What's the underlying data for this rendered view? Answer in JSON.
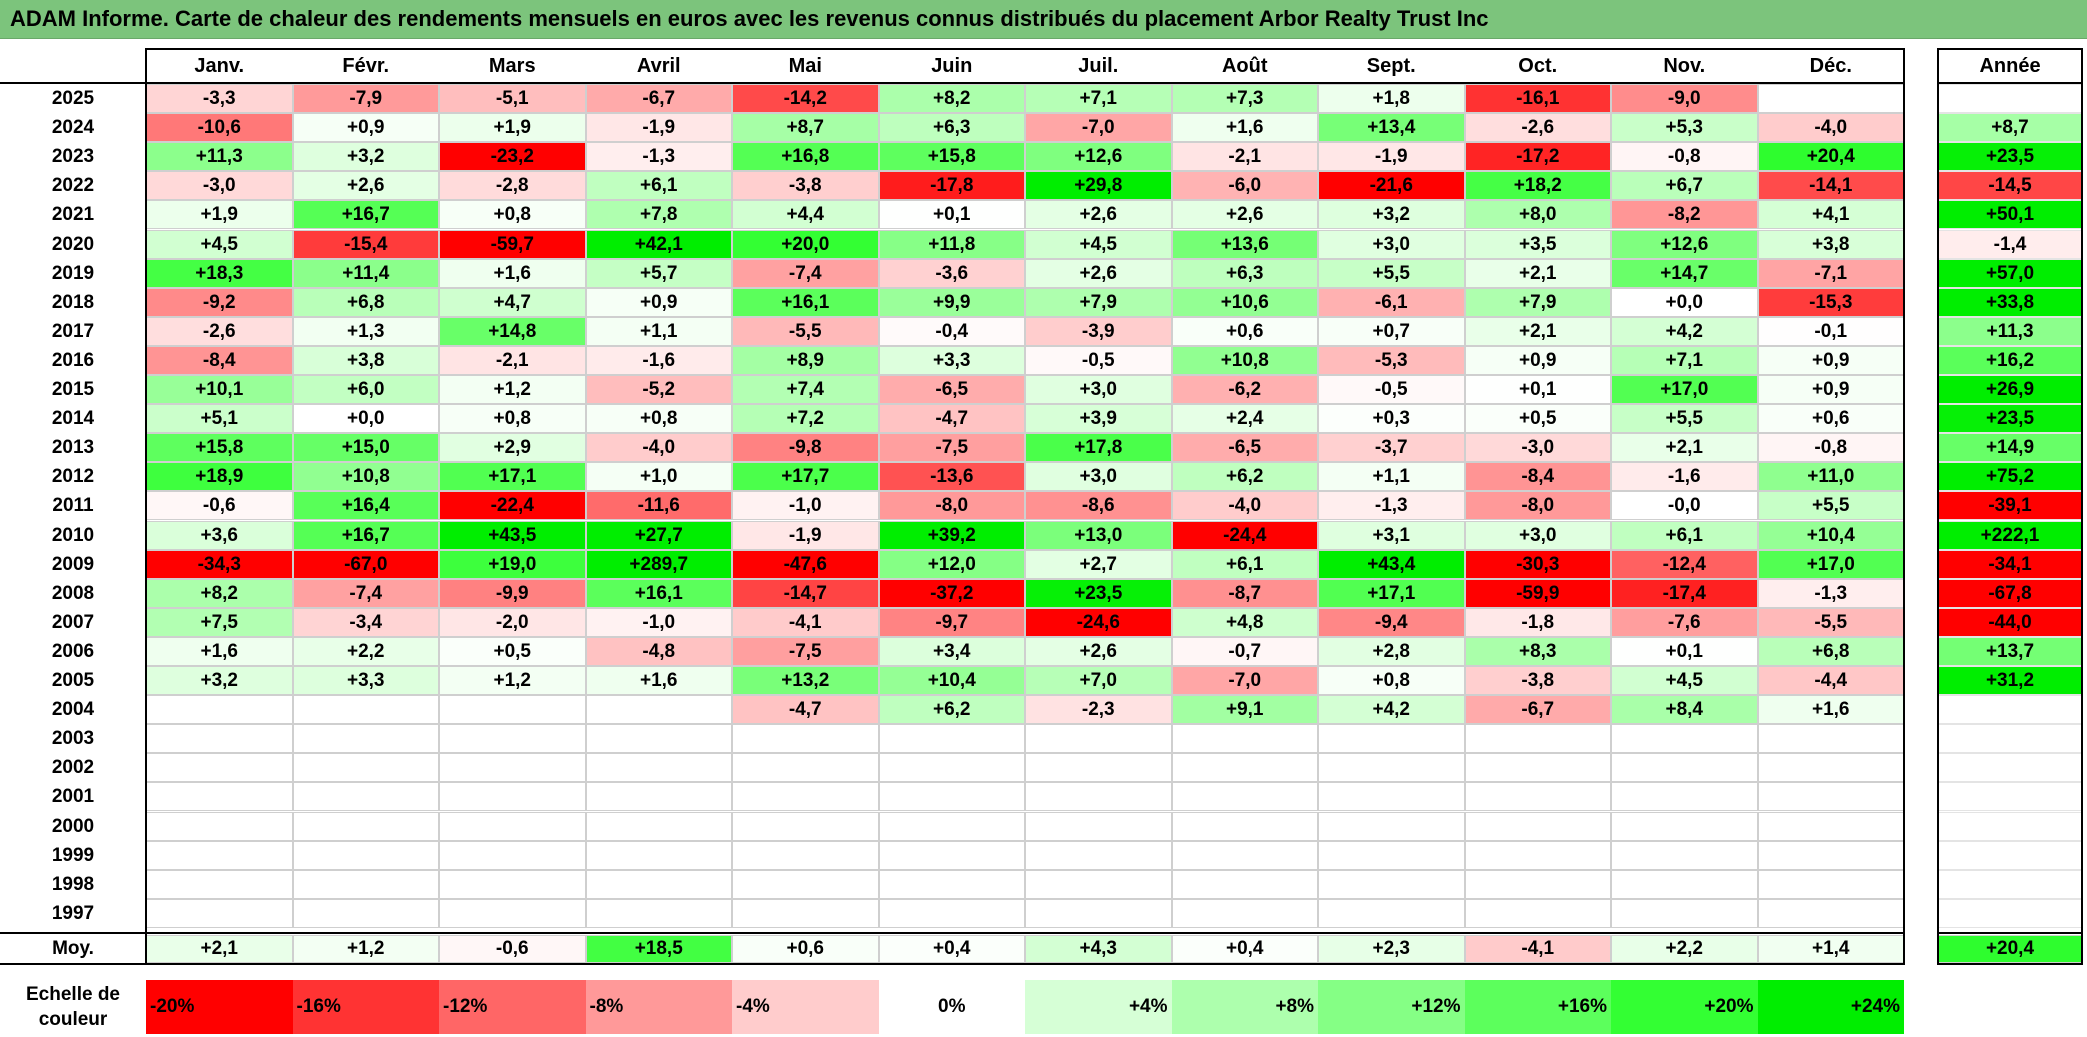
{
  "title": "ADAM Informe. Carte de chaleur des rendements mensuels en euros avec les revenus connus distribués du placement Arbor Realty Trust Inc",
  "chart_data": {
    "type": "heatmap",
    "columns": [
      "Janv.",
      "Févr.",
      "Mars",
      "Avril",
      "Mai",
      "Juin",
      "Juil.",
      "Août",
      "Sept.",
      "Oct.",
      "Nov.",
      "Déc."
    ],
    "annual_label": "Année",
    "rows": [
      {
        "year": "2025",
        "values": [
          "-3,3",
          "-7,9",
          "-5,1",
          "-6,7",
          "-14,2",
          "+8,2",
          "+7,1",
          "+7,3",
          "+1,8",
          "-16,1",
          "-9,0",
          ""
        ],
        "annual": ""
      },
      {
        "year": "2024",
        "values": [
          "-10,6",
          "+0,9",
          "+1,9",
          "-1,9",
          "+8,7",
          "+6,3",
          "-7,0",
          "+1,6",
          "+13,4",
          "-2,6",
          "+5,3",
          "-4,0"
        ],
        "annual": "+8,7"
      },
      {
        "year": "2023",
        "values": [
          "+11,3",
          "+3,2",
          "-23,2",
          "-1,3",
          "+16,8",
          "+15,8",
          "+12,6",
          "-2,1",
          "-1,9",
          "-17,2",
          "-0,8",
          "+20,4"
        ],
        "annual": "+23,5"
      },
      {
        "year": "2022",
        "values": [
          "-3,0",
          "+2,6",
          "-2,8",
          "+6,1",
          "-3,8",
          "-17,8",
          "+29,8",
          "-6,0",
          "-21,6",
          "+18,2",
          "+6,7",
          "-14,1"
        ],
        "annual": "-14,5"
      },
      {
        "year": "2021",
        "values": [
          "+1,9",
          "+16,7",
          "+0,8",
          "+7,8",
          "+4,4",
          "+0,1",
          "+2,6",
          "+2,6",
          "+3,2",
          "+8,0",
          "-8,2",
          "+4,1"
        ],
        "annual": "+50,1"
      },
      {
        "year": "2020",
        "values": [
          "+4,5",
          "-15,4",
          "-59,7",
          "+42,1",
          "+20,0",
          "+11,8",
          "+4,5",
          "+13,6",
          "+3,0",
          "+3,5",
          "+12,6",
          "+3,8"
        ],
        "annual": "-1,4"
      },
      {
        "year": "2019",
        "values": [
          "+18,3",
          "+11,4",
          "+1,6",
          "+5,7",
          "-7,4",
          "-3,6",
          "+2,6",
          "+6,3",
          "+5,5",
          "+2,1",
          "+14,7",
          "-7,1"
        ],
        "annual": "+57,0"
      },
      {
        "year": "2018",
        "values": [
          "-9,2",
          "+6,8",
          "+4,7",
          "+0,9",
          "+16,1",
          "+9,9",
          "+7,9",
          "+10,6",
          "-6,1",
          "+7,9",
          "+0,0",
          "-15,3"
        ],
        "annual": "+33,8"
      },
      {
        "year": "2017",
        "values": [
          "-2,6",
          "+1,3",
          "+14,8",
          "+1,1",
          "-5,5",
          "-0,4",
          "-3,9",
          "+0,6",
          "+0,7",
          "+2,1",
          "+4,2",
          "-0,1"
        ],
        "annual": "+11,3"
      },
      {
        "year": "2016",
        "values": [
          "-8,4",
          "+3,8",
          "-2,1",
          "-1,6",
          "+8,9",
          "+3,3",
          "-0,5",
          "+10,8",
          "-5,3",
          "+0,9",
          "+7,1",
          "+0,9"
        ],
        "annual": "+16,2"
      },
      {
        "year": "2015",
        "values": [
          "+10,1",
          "+6,0",
          "+1,2",
          "-5,2",
          "+7,4",
          "-6,5",
          "+3,0",
          "-6,2",
          "-0,5",
          "+0,1",
          "+17,0",
          "+0,9"
        ],
        "annual": "+26,9"
      },
      {
        "year": "2014",
        "values": [
          "+5,1",
          "+0,0",
          "+0,8",
          "+0,8",
          "+7,2",
          "-4,7",
          "+3,9",
          "+2,4",
          "+0,3",
          "+0,5",
          "+5,5",
          "+0,6"
        ],
        "annual": "+23,5"
      },
      {
        "year": "2013",
        "values": [
          "+15,8",
          "+15,0",
          "+2,9",
          "-4,0",
          "-9,8",
          "-7,5",
          "+17,8",
          "-6,5",
          "-3,7",
          "-3,0",
          "+2,1",
          "-0,8"
        ],
        "annual": "+14,9"
      },
      {
        "year": "2012",
        "values": [
          "+18,9",
          "+10,8",
          "+17,1",
          "+1,0",
          "+17,7",
          "-13,6",
          "+3,0",
          "+6,2",
          "+1,1",
          "-8,4",
          "-1,6",
          "+11,0"
        ],
        "annual": "+75,2"
      },
      {
        "year": "2011",
        "values": [
          "-0,6",
          "+16,4",
          "-22,4",
          "-11,6",
          "-1,0",
          "-8,0",
          "-8,6",
          "-4,0",
          "-1,3",
          "-8,0",
          "-0,0",
          "+5,5"
        ],
        "annual": "-39,1"
      },
      {
        "year": "2010",
        "values": [
          "+3,6",
          "+16,7",
          "+43,5",
          "+27,7",
          "-1,9",
          "+39,2",
          "+13,0",
          "-24,4",
          "+3,1",
          "+3,0",
          "+6,1",
          "+10,4"
        ],
        "annual": "+222,1"
      },
      {
        "year": "2009",
        "values": [
          "-34,3",
          "-67,0",
          "+19,0",
          "+289,7",
          "-47,6",
          "+12,0",
          "+2,7",
          "+6,1",
          "+43,4",
          "-30,3",
          "-12,4",
          "+17,0"
        ],
        "annual": "-34,1"
      },
      {
        "year": "2008",
        "values": [
          "+8,2",
          "-7,4",
          "-9,9",
          "+16,1",
          "-14,7",
          "-37,2",
          "+23,5",
          "-8,7",
          "+17,1",
          "-59,9",
          "-17,4",
          "-1,3"
        ],
        "annual": "-67,8"
      },
      {
        "year": "2007",
        "values": [
          "+7,5",
          "-3,4",
          "-2,0",
          "-1,0",
          "-4,1",
          "-9,7",
          "-24,6",
          "+4,8",
          "-9,4",
          "-1,8",
          "-7,6",
          "-5,5"
        ],
        "annual": "-44,0"
      },
      {
        "year": "2006",
        "values": [
          "+1,6",
          "+2,2",
          "+0,5",
          "-4,8",
          "-7,5",
          "+3,4",
          "+2,6",
          "-0,7",
          "+2,8",
          "+8,3",
          "+0,1",
          "+6,8"
        ],
        "annual": "+13,7"
      },
      {
        "year": "2005",
        "values": [
          "+3,2",
          "+3,3",
          "+1,2",
          "+1,6",
          "+13,2",
          "+10,4",
          "+7,0",
          "-7,0",
          "+0,8",
          "-3,8",
          "+4,5",
          "-4,4"
        ],
        "annual": "+31,2"
      },
      {
        "year": "2004",
        "values": [
          "",
          "",
          "",
          "",
          "-4,7",
          "+6,2",
          "-2,3",
          "+9,1",
          "+4,2",
          "-6,7",
          "+8,4",
          "+1,6"
        ],
        "annual": ""
      },
      {
        "year": "2003",
        "values": [
          "",
          "",
          "",
          "",
          "",
          "",
          "",
          "",
          "",
          "",
          "",
          ""
        ],
        "annual": ""
      },
      {
        "year": "2002",
        "values": [
          "",
          "",
          "",
          "",
          "",
          "",
          "",
          "",
          "",
          "",
          "",
          ""
        ],
        "annual": ""
      },
      {
        "year": "2001",
        "values": [
          "",
          "",
          "",
          "",
          "",
          "",
          "",
          "",
          "",
          "",
          "",
          ""
        ],
        "annual": ""
      },
      {
        "year": "2000",
        "values": [
          "",
          "",
          "",
          "",
          "",
          "",
          "",
          "",
          "",
          "",
          "",
          ""
        ],
        "annual": ""
      },
      {
        "year": "1999",
        "values": [
          "",
          "",
          "",
          "",
          "",
          "",
          "",
          "",
          "",
          "",
          "",
          ""
        ],
        "annual": ""
      },
      {
        "year": "1998",
        "values": [
          "",
          "",
          "",
          "",
          "",
          "",
          "",
          "",
          "",
          "",
          "",
          ""
        ],
        "annual": ""
      },
      {
        "year": "1997",
        "values": [
          "",
          "",
          "",
          "",
          "",
          "",
          "",
          "",
          "",
          "",
          "",
          ""
        ],
        "annual": ""
      }
    ],
    "average": {
      "label": "Moy.",
      "values": [
        "+2,1",
        "+1,2",
        "-0,6",
        "+18,5",
        "+0,6",
        "+0,4",
        "+4,3",
        "+0,4",
        "+2,3",
        "-4,1",
        "+2,2",
        "+1,4"
      ],
      "annual": "+20,4"
    },
    "color_scale": {
      "label": "Echelle de couleur",
      "stops": [
        {
          "label": "-20%",
          "value": -20,
          "color": "#ff0000"
        },
        {
          "label": "-16%",
          "value": -16,
          "color": "#ff3333"
        },
        {
          "label": "-12%",
          "value": -12,
          "color": "#ff6666"
        },
        {
          "label": "-8%",
          "value": -8,
          "color": "#ff9999"
        },
        {
          "label": "-4%",
          "value": -4,
          "color": "#ffcccc"
        },
        {
          "label": "0%",
          "value": 0,
          "color": "#ffffff"
        },
        {
          "label": "+4%",
          "value": 4,
          "color": "#d6ffd6"
        },
        {
          "label": "+8%",
          "value": 8,
          "color": "#adffad"
        },
        {
          "label": "+12%",
          "value": 12,
          "color": "#85ff85"
        },
        {
          "label": "+16%",
          "value": 16,
          "color": "#5cff5c"
        },
        {
          "label": "+20%",
          "value": 20,
          "color": "#33ff33"
        },
        {
          "label": "+24%",
          "value": 24,
          "color": "#00ee00"
        }
      ]
    }
  }
}
